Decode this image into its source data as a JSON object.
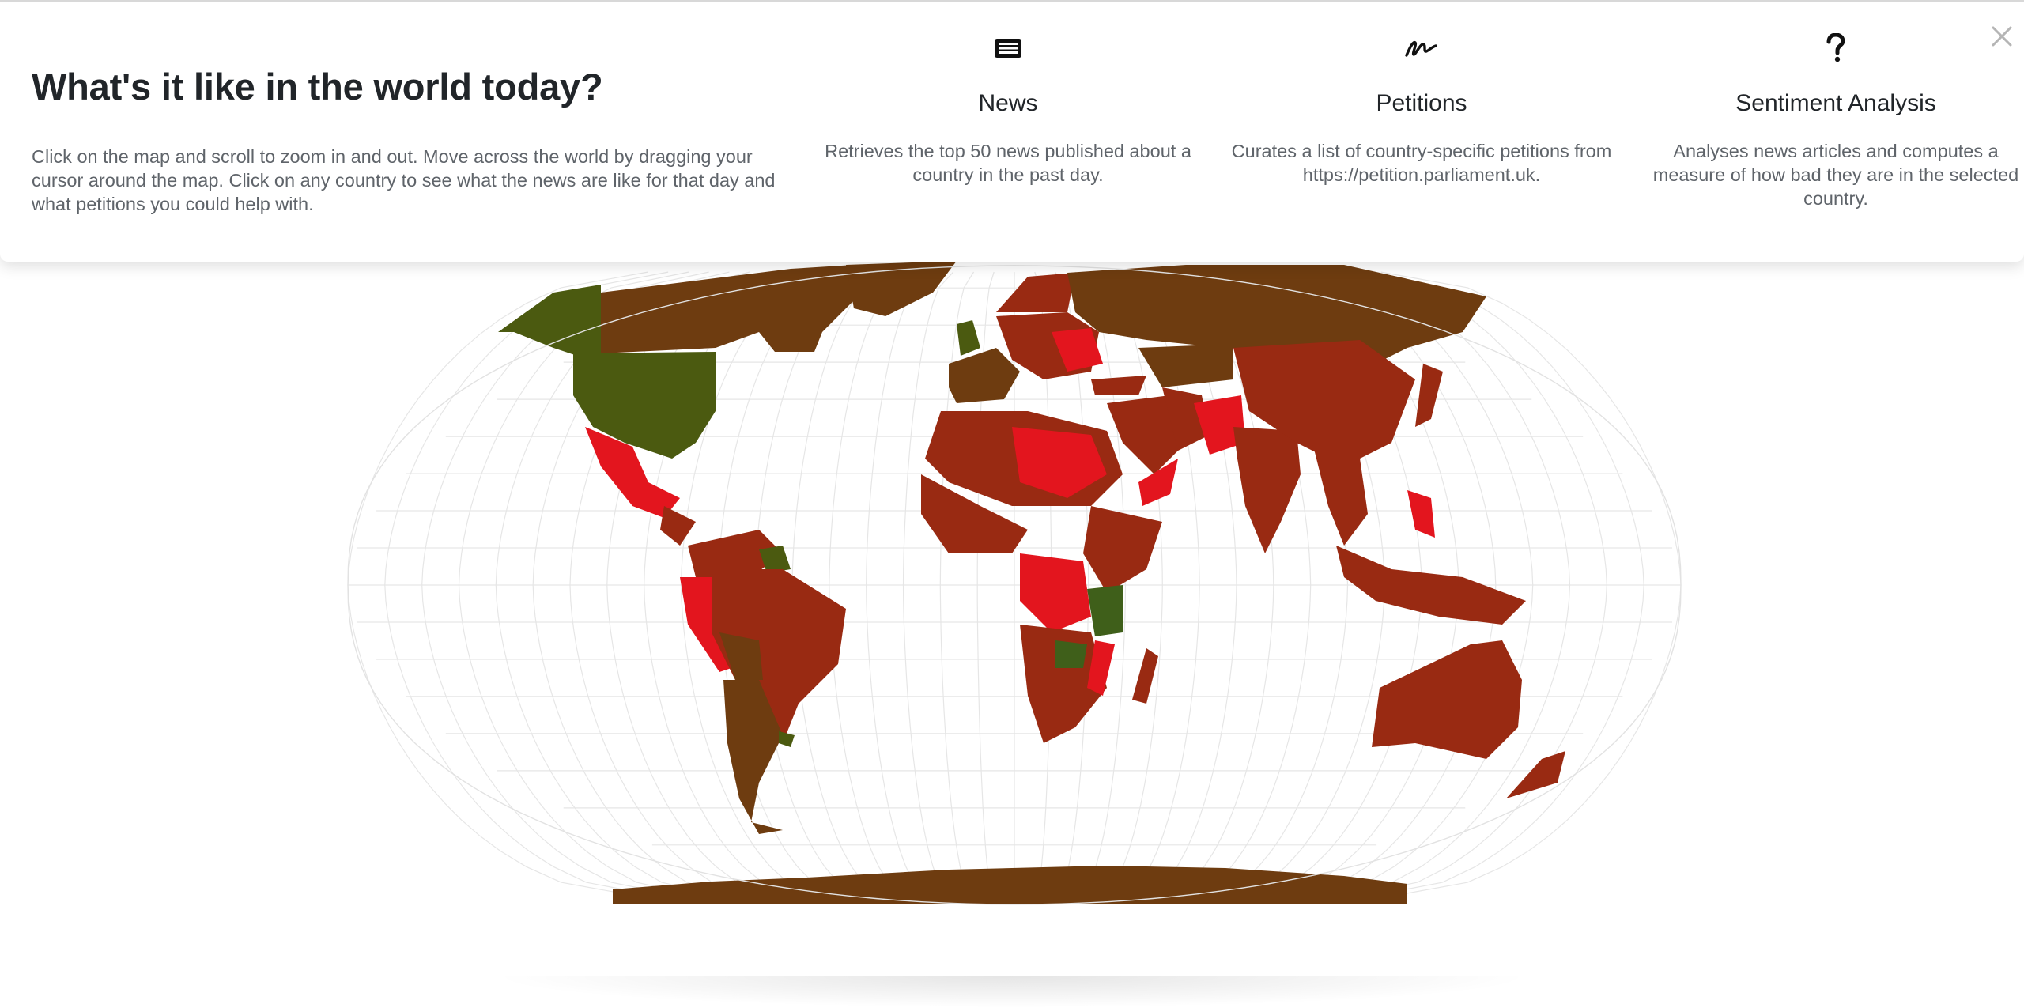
{
  "header": {
    "title": "What's it like in the world today?",
    "description": "Click on the map and scroll to zoom in and out. Move across the world by dragging your cursor around the map. Click on any country to see what the news are like for that day and what petitions you could help with."
  },
  "features": [
    {
      "icon": "newspaper-icon",
      "title": "News",
      "description": "Retrieves the top 50 news published about a country in the past day."
    },
    {
      "icon": "signature-icon",
      "title": "Petitions",
      "description": "Curates a list of country-specific petitions from https://petition.parliament.uk."
    },
    {
      "icon": "question-mark-icon",
      "title": "Sentiment Analysis",
      "description": "Analyses news articles and computes a measure of how bad they are in the selected country."
    }
  ],
  "close_icon": "close-icon",
  "map": {
    "projection": "robinson",
    "graticule": true,
    "sentiment_colors": {
      "good": "#4b5a10",
      "neutral": "#6e3c10",
      "bad": "#992a12",
      "very_bad": "#e3151e",
      "positive": "#3f5f1a"
    }
  }
}
